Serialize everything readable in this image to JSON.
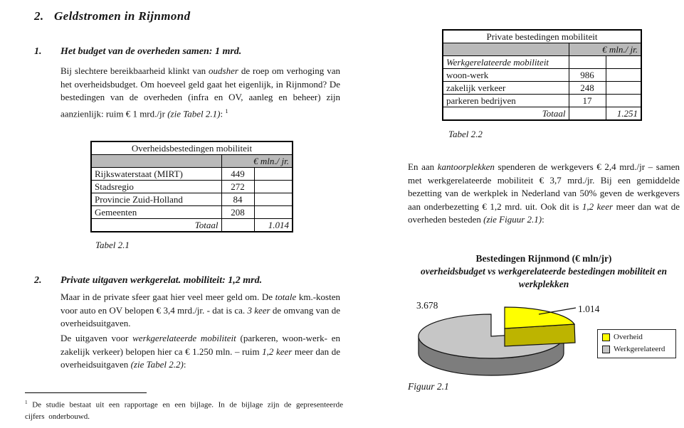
{
  "page_title": {
    "num": "2.",
    "text": "Geldstromen in Rijnmond"
  },
  "sections": {
    "s1": {
      "num": "1.",
      "heading": "Het budget van de overheden samen: 1 mrd.",
      "para": [
        {
          "t": "Bij slechtere bereikbaarheid klinkt van "
        },
        {
          "t": "oudsher",
          "i": true
        },
        {
          "t": " de roep om verhoging van het overheidsbudget. Om hoeveel geld gaat het eigenlijk, in Rijnmond? De bestedingen van de overheden (infra en OV, aanleg en beheer) zijn aanzienlijk: ruim € 1 mrd./jr "
        },
        {
          "t": "(zie Tabel 2.1)",
          "i": true
        },
        {
          "t": ": "
        },
        {
          "t": "1",
          "sup": true
        }
      ]
    },
    "s2": {
      "num": "2.",
      "heading": "Private uitgaven werkgerelat. mobiliteit: 1,2 mrd.",
      "para1": [
        {
          "t": "Maar in de private sfeer gaat hier veel meer geld om. De "
        },
        {
          "t": "totale",
          "i": true
        },
        {
          "t": " km.-kosten voor auto en OV belopen € 3,4 mrd./jr. - dat is ca. "
        },
        {
          "t": "3 keer",
          "i": true
        },
        {
          "t": " de omvang van de overheidsuitgaven."
        }
      ],
      "para2": [
        {
          "t": "De uitgaven voor "
        },
        {
          "t": "werkgerelateerde mobiliteit",
          "i": true
        },
        {
          "t": " (parkeren, woon-werk- en zakelijk verkeer) belopen hier ca € 1.250 mln. – ruim "
        },
        {
          "t": "1,2 keer",
          "i": true
        },
        {
          "t": " meer dan de overheidsuitgaven "
        },
        {
          "t": "(zie Tabel 2.2)",
          "i": true
        },
        {
          "t": ":"
        }
      ]
    }
  },
  "right_column": {
    "para": [
      {
        "t": "En aan "
      },
      {
        "t": "kantoorplekken",
        "i": true
      },
      {
        "t": " spenderen de werkgevers € 2,4 mrd./jr – samen met werkgerelateerde mobiliteit € 3,7 mrd./jr. Bij een gemiddelde bezetting van de werkplek in Nederland van 50% geven de werkgevers aan onderbezetting € 1,2 mrd. uit. Ook dit is "
      },
      {
        "t": "1,2 keer",
        "i": true
      },
      {
        "t": " meer dan wat de overheden besteden "
      },
      {
        "t": "(zie Figuur 2.1)",
        "i": true
      },
      {
        "t": ":"
      }
    ]
  },
  "tables": {
    "t1": {
      "title": "Overheidsbestedingen mobiliteit",
      "unit": "€ mln./ jr.",
      "rows": [
        {
          "label": "Rijkswaterstaat (MIRT)",
          "value": "449"
        },
        {
          "label": "Stadsregio",
          "value": "272"
        },
        {
          "label": "Provincie Zuid-Holland",
          "value": "84"
        },
        {
          "label": "Gemeenten",
          "value": "208"
        }
      ],
      "total_label": "Totaal",
      "total_value": "1.014",
      "caption": "Tabel 2.1"
    },
    "t2": {
      "title": "Private bestedingen mobiliteit",
      "unit": "€ mln./ jr.",
      "group_label": "Werkgerelateerde mobiliteit",
      "rows": [
        {
          "label": "woon-werk",
          "value": "986"
        },
        {
          "label": "zakelijk verkeer",
          "value": "248"
        },
        {
          "label": "parkeren bedrijven",
          "value": "17"
        }
      ],
      "total_label": "Totaal",
      "total_value": "1.251",
      "caption": "Tabel 2.2"
    }
  },
  "footnote": [
    {
      "t": "1",
      "sup": true
    },
    {
      "t": " De studie bestaat uit een rapportage en een bijlage. In de bijlage zijn de gepresenteerde cijfers onderbouwd."
    }
  ],
  "chart_data": {
    "type": "pie",
    "style": "3d-exploded",
    "title": "Bestedingen Rijnmond (€ mln/jr)",
    "subtitle": "overheidsbudget vs werkgerelateerde bestedingen mobiliteit en werkplekken",
    "legend_position": "right",
    "slices": [
      {
        "label": "Overheid",
        "value": 1014,
        "display": "1.014",
        "color": "#ffff00",
        "side_color": "#bdb400",
        "exploded": true
      },
      {
        "label": "Werkgerelateerd",
        "value": 3678,
        "display": "3.678",
        "color": "#c6c6c6",
        "side_color": "#7d7d7d",
        "exploded": false
      }
    ],
    "caption": "Figuur 2.1"
  }
}
